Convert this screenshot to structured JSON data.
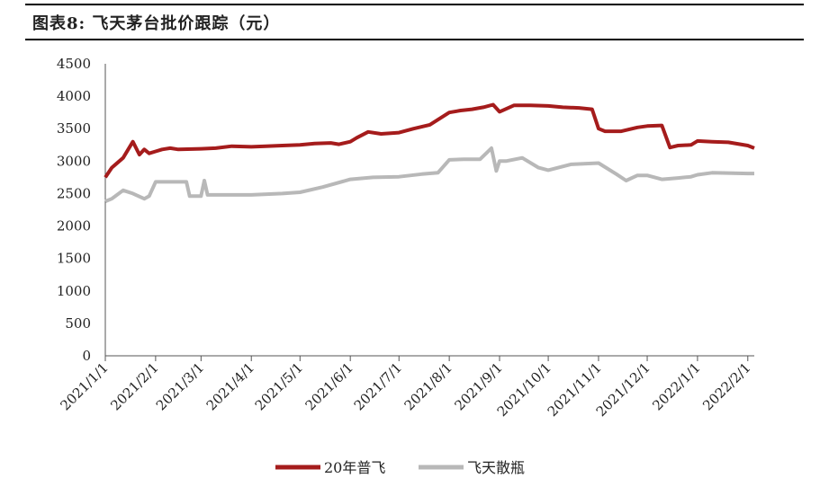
{
  "header": {
    "title": "图表8:  飞天茅台批价跟踪（元）"
  },
  "chart_data": {
    "type": "line",
    "title": "图表8:  飞天茅台批价跟踪（元）",
    "xlabel": "",
    "ylabel": "",
    "ylim": [
      0,
      4500
    ],
    "yticks": [
      0,
      500,
      1000,
      1500,
      2000,
      2500,
      3000,
      3500,
      4000,
      4500
    ],
    "xticks": [
      "2021/1/1",
      "2021/2/1",
      "2021/3/1",
      "2021/4/1",
      "2021/5/1",
      "2021/6/1",
      "2021/7/1",
      "2021/8/1",
      "2021/9/1",
      "2021/10/1",
      "2021/11/1",
      "2021/12/1",
      "2022/1/1",
      "2022/2/1"
    ],
    "grid": false,
    "legend_position": "bottom",
    "series": [
      {
        "name": "20年普飞",
        "color": "#a51c1c",
        "x": [
          "2021/1/1",
          "2021/1/5",
          "2021/1/12",
          "2021/1/18",
          "2021/1/22",
          "2021/1/25",
          "2021/1/28",
          "2021/2/1",
          "2021/2/5",
          "2021/2/10",
          "2021/2/15",
          "2021/3/1",
          "2021/3/10",
          "2021/3/20",
          "2021/4/1",
          "2021/4/10",
          "2021/4/20",
          "2021/5/1",
          "2021/5/10",
          "2021/5/20",
          "2021/5/25",
          "2021/6/1",
          "2021/6/5",
          "2021/6/12",
          "2021/6/20",
          "2021/7/1",
          "2021/7/10",
          "2021/7/20",
          "2021/8/1",
          "2021/8/8",
          "2021/8/15",
          "2021/8/22",
          "2021/8/28",
          "2021/9/1",
          "2021/9/10",
          "2021/9/20",
          "2021/10/1",
          "2021/10/10",
          "2021/10/20",
          "2021/10/28",
          "2021/11/1",
          "2021/11/5",
          "2021/11/15",
          "2021/11/25",
          "2021/12/1",
          "2021/12/10",
          "2021/12/15",
          "2021/12/20",
          "2021/12/28",
          "2022/1/1",
          "2022/1/10",
          "2022/1/20",
          "2022/2/1",
          "2022/2/5"
        ],
        "values": [
          2750,
          2900,
          3050,
          3300,
          3100,
          3180,
          3120,
          3150,
          3180,
          3200,
          3180,
          3190,
          3200,
          3230,
          3220,
          3230,
          3240,
          3250,
          3270,
          3280,
          3260,
          3300,
          3360,
          3450,
          3420,
          3440,
          3500,
          3560,
          3750,
          3780,
          3800,
          3830,
          3870,
          3760,
          3860,
          3860,
          3850,
          3830,
          3820,
          3800,
          3500,
          3460,
          3460,
          3520,
          3540,
          3550,
          3210,
          3240,
          3250,
          3310,
          3300,
          3290,
          3240,
          3200
        ]
      },
      {
        "name": "飞天散瓶",
        "color": "#b8b8b8",
        "x": [
          "2021/1/1",
          "2021/1/5",
          "2021/1/12",
          "2021/1/18",
          "2021/1/25",
          "2021/1/28",
          "2021/2/1",
          "2021/2/10",
          "2021/2/20",
          "2021/2/22",
          "2021/3/1",
          "2021/3/3",
          "2021/3/5",
          "2021/3/20",
          "2021/4/1",
          "2021/4/20",
          "2021/5/1",
          "2021/5/15",
          "2021/6/1",
          "2021/6/15",
          "2021/7/1",
          "2021/7/15",
          "2021/7/25",
          "2021/8/1",
          "2021/8/10",
          "2021/8/20",
          "2021/8/27",
          "2021/8/30",
          "2021/9/1",
          "2021/9/5",
          "2021/9/15",
          "2021/9/25",
          "2021/10/1",
          "2021/10/15",
          "2021/11/1",
          "2021/11/12",
          "2021/11/18",
          "2021/11/25",
          "2021/12/1",
          "2021/12/10",
          "2021/12/20",
          "2021/12/28",
          "2022/1/1",
          "2022/1/10",
          "2022/2/1",
          "2022/2/5"
        ],
        "values": [
          2380,
          2420,
          2550,
          2500,
          2420,
          2460,
          2680,
          2680,
          2680,
          2460,
          2460,
          2700,
          2480,
          2480,
          2480,
          2500,
          2520,
          2600,
          2720,
          2750,
          2760,
          2800,
          2820,
          3020,
          3030,
          3030,
          3200,
          2850,
          3000,
          3000,
          3050,
          2900,
          2860,
          2950,
          2970,
          2800,
          2700,
          2780,
          2780,
          2720,
          2740,
          2760,
          2790,
          2820,
          2810,
          2810
        ]
      }
    ]
  }
}
